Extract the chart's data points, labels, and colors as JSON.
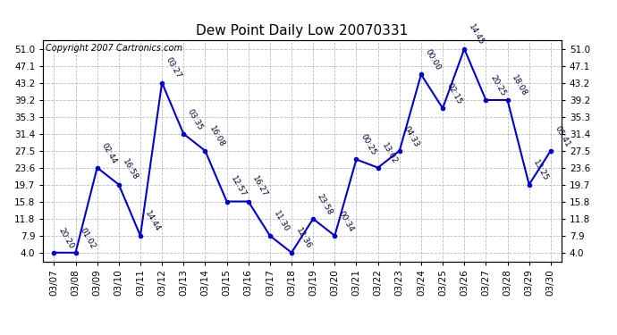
{
  "title": "Dew Point Daily Low 20070331",
  "copyright": "Copyright 2007 Cartronics.com",
  "x_labels": [
    "03/07",
    "03/08",
    "03/09",
    "03/10",
    "03/11",
    "03/12",
    "03/13",
    "03/14",
    "03/15",
    "03/16",
    "03/17",
    "03/18",
    "03/19",
    "03/20",
    "03/21",
    "03/22",
    "03/23",
    "03/24",
    "03/25",
    "03/26",
    "03/27",
    "03/28",
    "03/29",
    "03/30"
  ],
  "y_values": [
    4.0,
    4.0,
    23.6,
    19.7,
    7.9,
    43.2,
    31.4,
    27.5,
    15.8,
    15.8,
    7.9,
    4.0,
    11.8,
    7.9,
    25.5,
    23.6,
    27.5,
    45.1,
    37.3,
    51.0,
    39.2,
    39.2,
    19.7,
    27.5
  ],
  "point_labels": [
    "20:20",
    "01:02",
    "02:44",
    "16:58",
    "14:44",
    "03:27",
    "03:35",
    "16:08",
    "12:57",
    "16:27",
    "11:30",
    "12:36",
    "23:58",
    "00:34",
    "00:25",
    "13:02",
    "04:33",
    "00:00",
    "02:15",
    "14:45",
    "20:25",
    "18:08",
    "13:25",
    "05:41"
  ],
  "y_ticks": [
    4.0,
    7.9,
    11.8,
    15.8,
    19.7,
    23.6,
    27.5,
    31.4,
    35.3,
    39.2,
    43.2,
    47.1,
    51.0
  ],
  "line_color": "#0000cc",
  "marker_color": "#0000cc",
  "bg_color": "#ffffff",
  "grid_color": "#bbbbbb",
  "title_fontsize": 11,
  "label_fontsize": 6.5,
  "tick_fontsize": 7.5,
  "copyright_fontsize": 7
}
